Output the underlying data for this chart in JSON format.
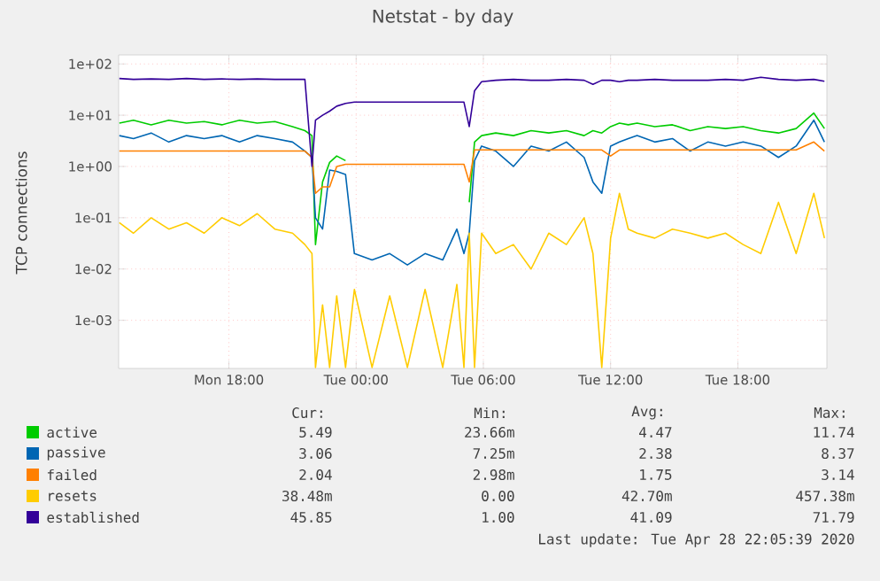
{
  "chart_data": {
    "type": "line",
    "title": "Netstat - by day",
    "ylabel": "TCP connections",
    "log": "y",
    "grid": true,
    "legend": "bottom",
    "marker": "none",
    "xlim": [
      "2020-04-27T12:48",
      "2020-04-28T22:12"
    ],
    "ylim": [
      0.000115,
      150
    ],
    "xticks": [
      {
        "value": "2020-04-27T18:00",
        "label": "Mon 18:00"
      },
      {
        "value": "2020-04-28T00:00",
        "label": "Tue 00:00"
      },
      {
        "value": "2020-04-28T06:00",
        "label": "Tue 06:00"
      },
      {
        "value": "2020-04-28T12:00",
        "label": "Tue 12:00"
      },
      {
        "value": "2020-04-28T18:00",
        "label": "Tue 18:00"
      }
    ],
    "yticks": [
      {
        "value": 0.001,
        "label": "1e-03"
      },
      {
        "value": 0.01,
        "label": "1e-02"
      },
      {
        "value": 0.1,
        "label": "1e-01"
      },
      {
        "value": 1,
        "label": "1e+00"
      },
      {
        "value": 10,
        "label": "1e+01"
      },
      {
        "value": 100,
        "label": "1e+02"
      }
    ],
    "x": [
      "2020-04-27T12:50",
      "2020-04-27T13:30",
      "2020-04-27T14:20",
      "2020-04-27T15:10",
      "2020-04-27T16:00",
      "2020-04-27T16:50",
      "2020-04-27T17:40",
      "2020-04-27T18:30",
      "2020-04-27T19:20",
      "2020-04-27T20:10",
      "2020-04-27T21:00",
      "2020-04-27T21:35",
      "2020-04-27T21:55",
      "2020-04-27T22:05",
      "2020-04-27T22:25",
      "2020-04-27T22:45",
      "2020-04-27T23:05",
      "2020-04-27T23:30",
      "2020-04-27T23:55",
      "2020-04-28T00:45",
      "2020-04-28T01:35",
      "2020-04-28T02:25",
      "2020-04-28T03:15",
      "2020-04-28T04:05",
      "2020-04-28T04:45",
      "2020-04-28T05:05",
      "2020-04-28T05:20",
      "2020-04-28T05:35",
      "2020-04-28T05:55",
      "2020-04-28T06:35",
      "2020-04-28T07:25",
      "2020-04-28T08:15",
      "2020-04-28T09:05",
      "2020-04-28T09:55",
      "2020-04-28T10:45",
      "2020-04-28T11:10",
      "2020-04-28T11:35",
      "2020-04-28T12:00",
      "2020-04-28T12:25",
      "2020-04-28T12:50",
      "2020-04-28T13:15",
      "2020-04-28T14:05",
      "2020-04-28T14:55",
      "2020-04-28T15:45",
      "2020-04-28T16:35",
      "2020-04-28T17:25",
      "2020-04-28T18:15",
      "2020-04-28T19:05",
      "2020-04-28T19:55",
      "2020-04-28T20:45",
      "2020-04-28T21:35",
      "2020-04-28T22:05"
    ],
    "series": [
      {
        "name": "active",
        "color": "#00cc00",
        "values": [
          7,
          8,
          6.5,
          8,
          7,
          7.5,
          6.5,
          8,
          7,
          7.5,
          6,
          5,
          4,
          0.03,
          0.5,
          1.2,
          1.6,
          1.3,
          null,
          null,
          null,
          null,
          null,
          null,
          null,
          null,
          0.2,
          3,
          4,
          4.5,
          4,
          5,
          4.5,
          5,
          4,
          5,
          4.5,
          6,
          7,
          6.5,
          7,
          6,
          6.5,
          5,
          6,
          5.5,
          6,
          5,
          4.5,
          5.5,
          11,
          5.5
        ]
      },
      {
        "name": "passive",
        "color": "#0066b3",
        "values": [
          4,
          3.5,
          4.5,
          3,
          4,
          3.5,
          4,
          3,
          4,
          3.5,
          3,
          2,
          1.5,
          0.1,
          0.06,
          0.85,
          0.8,
          0.7,
          0.02,
          0.015,
          0.02,
          0.012,
          0.02,
          0.015,
          0.06,
          0.02,
          0.05,
          1.3,
          2.5,
          2,
          1,
          2.5,
          2,
          3,
          1.5,
          0.5,
          0.3,
          2.5,
          3,
          3.5,
          4,
          3,
          3.5,
          2,
          3,
          2.5,
          3,
          2.5,
          1.5,
          2.5,
          8,
          3
        ]
      },
      {
        "name": "failed",
        "color": "#ff8000",
        "values": [
          2,
          2,
          2,
          2,
          2,
          2,
          2,
          2,
          2,
          2,
          2,
          2,
          1.5,
          0.3,
          0.4,
          0.4,
          1,
          1.1,
          1.1,
          1.1,
          1.1,
          1.1,
          1.1,
          1.1,
          1.1,
          1.1,
          0.5,
          2.1,
          2.1,
          2.1,
          2.1,
          2.1,
          2.1,
          2.1,
          2.1,
          2.1,
          2.1,
          1.6,
          2.1,
          2.1,
          2.1,
          2.1,
          2.1,
          2.1,
          2.1,
          2.1,
          2.1,
          2.1,
          2.1,
          2.1,
          3,
          2
        ]
      },
      {
        "name": "resets",
        "color": "#ffcc00",
        "values": [
          0.08,
          0.05,
          0.1,
          0.06,
          0.08,
          0.05,
          0.1,
          0.07,
          0.12,
          0.06,
          0.05,
          0.03,
          0.02,
          0.00012,
          0.002,
          0.00012,
          0.003,
          0.00012,
          0.004,
          0.00012,
          0.003,
          0.00012,
          0.004,
          0.00012,
          0.005,
          0.00012,
          0.05,
          0.00012,
          0.05,
          0.02,
          0.03,
          0.01,
          0.05,
          0.03,
          0.1,
          0.02,
          0.00012,
          0.04,
          0.3,
          0.06,
          0.05,
          0.04,
          0.06,
          0.05,
          0.04,
          0.05,
          0.03,
          0.02,
          0.2,
          0.02,
          0.3,
          0.04
        ]
      },
      {
        "name": "established",
        "color": "#330099",
        "values": [
          52,
          50,
          51,
          50,
          52,
          50,
          51,
          50,
          51,
          50,
          50,
          50,
          1,
          8,
          10,
          12,
          15,
          17,
          18,
          18,
          18,
          18,
          18,
          18,
          18,
          18,
          6,
          30,
          45,
          48,
          50,
          48,
          48,
          50,
          48,
          40,
          48,
          48,
          45,
          48,
          48,
          50,
          48,
          48,
          48,
          50,
          48,
          55,
          50,
          48,
          50,
          46
        ]
      }
    ],
    "annotations": [
      "Cur:",
      "Min:",
      "Avg:",
      "Max:",
      "5.49",
      "23.66m",
      "4.47",
      "11.74",
      "3.06",
      "7.25m",
      "2.38",
      "8.37",
      "2.04",
      "2.98m",
      "1.75",
      "3.14",
      "38.48m",
      "0.00",
      "42.70m",
      "457.38m",
      "45.85",
      "1.00",
      "41.09",
      "71.79",
      "Last update: Tue Apr 28 22:05:39 2020"
    ]
  }
}
